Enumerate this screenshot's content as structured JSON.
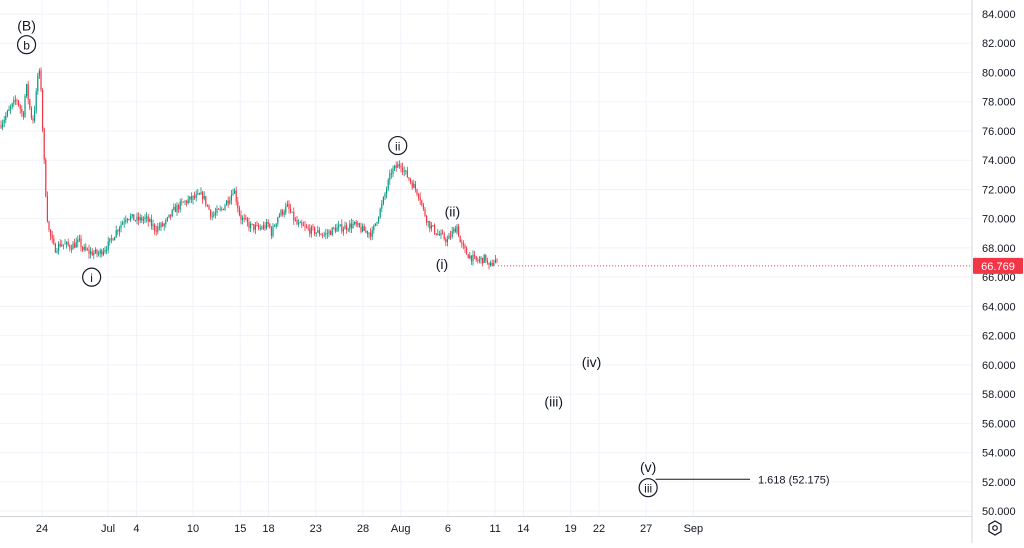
{
  "chart_data": {
    "type": "candlestick",
    "price_axis": {
      "ticks": [
        "84.000",
        "82.000",
        "80.000",
        "78.000",
        "76.000",
        "74.000",
        "72.000",
        "70.000",
        "68.000",
        "66.000",
        "64.000",
        "62.000",
        "60.000",
        "58.000",
        "56.000",
        "54.000",
        "52.000",
        "50.000"
      ],
      "range": [
        49.5,
        85.2
      ]
    },
    "time_axis": {
      "ticks": [
        "24",
        "Jul",
        "4",
        "10",
        "15",
        "18",
        "23",
        "28",
        "Aug",
        "6",
        "11",
        "14",
        "19",
        "22",
        "27",
        "Sep"
      ]
    },
    "last_price": {
      "label": "66.769",
      "value": 66.769,
      "color": "#f23645"
    },
    "colors": {
      "up": "#089981",
      "down": "#f23645",
      "grid": "#f0f3fa",
      "axis_text": "#131722"
    },
    "price_path": [
      {
        "date": "Jun 21",
        "price": 76.4
      },
      {
        "date": "Jun 21",
        "price": 78.2
      },
      {
        "date": "Jun 22",
        "price": 77.0
      },
      {
        "date": "Jun 22",
        "price": 79.2
      },
      {
        "date": "Jun 22",
        "price": 77.8
      },
      {
        "date": "Jun 23",
        "price": 76.6
      },
      {
        "date": "Jun 23",
        "price": 78.0
      },
      {
        "date": "Jun 23",
        "price": 80.4
      },
      {
        "date": "Jun 23",
        "price": 78.6
      },
      {
        "date": "Jun 24",
        "price": 77.2
      },
      {
        "date": "Jun 24",
        "price": 72.6
      },
      {
        "date": "Jun 24",
        "price": 69.4
      },
      {
        "date": "Jun 25",
        "price": 68.6
      },
      {
        "date": "Jun 25",
        "price": 67.9
      },
      {
        "date": "Jun 26",
        "price": 68.3
      },
      {
        "date": "Jun 27",
        "price": 68.1
      },
      {
        "date": "Jun 28",
        "price": 68.4
      },
      {
        "date": "Jun 28",
        "price": 67.9
      },
      {
        "date": "Jun 29",
        "price": 67.7
      },
      {
        "date": "Jun 30",
        "price": 67.6
      },
      {
        "date": "Jul 1",
        "price": 68.2
      },
      {
        "date": "Jul 2",
        "price": 69.3
      },
      {
        "date": "Jul 3",
        "price": 70.2
      },
      {
        "date": "Jul 4",
        "price": 69.9
      },
      {
        "date": "Jul 5",
        "price": 70.0
      },
      {
        "date": "Jul 6",
        "price": 69.3
      },
      {
        "date": "Jul 7",
        "price": 69.6
      },
      {
        "date": "Jul 8",
        "price": 70.6
      },
      {
        "date": "Jul 9",
        "price": 71.1
      },
      {
        "date": "Jul 10",
        "price": 71.4
      },
      {
        "date": "Jul 11",
        "price": 71.6
      },
      {
        "date": "Jul 12",
        "price": 70.2
      },
      {
        "date": "Jul 13",
        "price": 70.6
      },
      {
        "date": "Jul 14",
        "price": 71.6
      },
      {
        "date": "Jul 14",
        "price": 72.1
      },
      {
        "date": "Jul 15",
        "price": 70.1
      },
      {
        "date": "Jul 16",
        "price": 69.5
      },
      {
        "date": "Jul 17",
        "price": 69.3
      },
      {
        "date": "Jul 18",
        "price": 69.6
      },
      {
        "date": "Jul 18",
        "price": 69.0
      },
      {
        "date": "Jul 19",
        "price": 70.2
      },
      {
        "date": "Jul 20",
        "price": 70.8
      },
      {
        "date": "Jul 21",
        "price": 69.6
      },
      {
        "date": "Jul 22",
        "price": 69.3
      },
      {
        "date": "Jul 23",
        "price": 69.1
      },
      {
        "date": "Jul 24",
        "price": 68.9
      },
      {
        "date": "Jul 25",
        "price": 69.3
      },
      {
        "date": "Jul 26",
        "price": 69.4
      },
      {
        "date": "Jul 27",
        "price": 69.6
      },
      {
        "date": "Jul 28",
        "price": 69.2
      },
      {
        "date": "Jul 29",
        "price": 69.0
      },
      {
        "date": "Jul 29",
        "price": 69.7
      },
      {
        "date": "Jul 30",
        "price": 70.9
      },
      {
        "date": "Jul 31",
        "price": 73.2
      },
      {
        "date": "Aug 1",
        "price": 73.8
      },
      {
        "date": "Aug 1",
        "price": 73.3
      },
      {
        "date": "Aug 2",
        "price": 72.6
      },
      {
        "date": "Aug 3",
        "price": 71.6
      },
      {
        "date": "Aug 3",
        "price": 70.7
      },
      {
        "date": "Aug 4",
        "price": 69.6
      },
      {
        "date": "Aug 5",
        "price": 68.9
      },
      {
        "date": "Aug 6",
        "price": 68.5
      },
      {
        "date": "Aug 6",
        "price": 68.9
      },
      {
        "date": "Aug 7",
        "price": 69.5
      },
      {
        "date": "Aug 7",
        "price": 68.3
      },
      {
        "date": "Aug 8",
        "price": 67.6
      },
      {
        "date": "Aug 9",
        "price": 67.1
      },
      {
        "date": "Aug 10",
        "price": 67.3
      },
      {
        "date": "Aug 10",
        "price": 66.6
      },
      {
        "date": "Aug 11",
        "price": 67.2
      },
      {
        "date": "Aug 11",
        "price": 66.77
      }
    ],
    "wave_labels": [
      {
        "text": "(B)",
        "date": "Jun 23",
        "price": 83.2,
        "circled": false
      },
      {
        "text": "b",
        "date": "Jun 23",
        "price": 81.9,
        "circled": true
      },
      {
        "text": "i",
        "date": "Jun 30",
        "price": 66.0,
        "circled": true
      },
      {
        "text": "ii",
        "date": "Aug 1",
        "price": 75.0,
        "circled": true
      },
      {
        "text": "(ii)",
        "date": "Aug 7",
        "price": 70.5,
        "circled": false
      },
      {
        "text": "(i)",
        "date": "Aug 6",
        "price": 66.9,
        "circled": false
      },
      {
        "text": "(iv)",
        "date": "Aug 21",
        "price": 60.2,
        "circled": false
      },
      {
        "text": "(iii)",
        "date": "Aug 17",
        "price": 57.5,
        "circled": false
      },
      {
        "text": "(v)",
        "date": "Aug 27",
        "price": 53.0,
        "circled": false
      },
      {
        "text": "iii",
        "date": "Aug 27",
        "price": 51.6,
        "circled": true
      }
    ],
    "fib_level": {
      "label": "1.618 (52.175)",
      "value": 52.175,
      "date_from": "Aug 28",
      "date_to": "Sep 7"
    },
    "grid": true
  },
  "toolbar": {
    "settings_icon": "settings-gear-icon"
  }
}
